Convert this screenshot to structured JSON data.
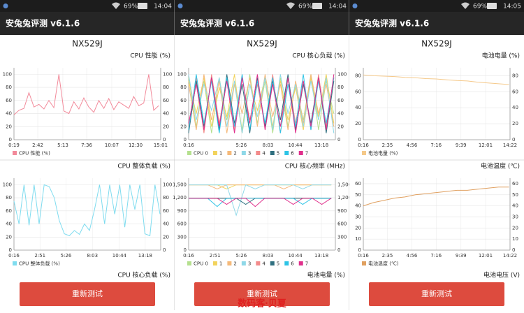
{
  "panels": [
    {
      "status": {
        "battery": "69%",
        "time": "14:04"
      },
      "app_title": "安兔兔评测 v6.1.6",
      "device": "NX529J",
      "charts": [
        {
          "type": "line",
          "title": "CPU 性能 (%)",
          "x": [
            19,
            49,
            79,
            109,
            139,
            169,
            199,
            229,
            259,
            289,
            319,
            349,
            379,
            409,
            439,
            469,
            499,
            529,
            559,
            589,
            619,
            649,
            679,
            709,
            739,
            769,
            799,
            829,
            859,
            889
          ],
          "series": [
            {
              "name": "CPU 性能 (%)",
              "color": "#f28a9a",
              "values": [
                38,
                45,
                48,
                72,
                50,
                54,
                47,
                60,
                49,
                100,
                44,
                40,
                58,
                47,
                64,
                50,
                42,
                60,
                48,
                63,
                46,
                58,
                53,
                48,
                66,
                52,
                56,
                100,
                45,
                52
              ]
            }
          ],
          "xlim": [
            19,
            901
          ],
          "xticks": [
            {
              "value": 19,
              "label": "0:19"
            },
            {
              "value": 162,
              "label": "2:42"
            },
            {
              "value": 313,
              "label": "5:13"
            },
            {
              "value": 456,
              "label": "7:36"
            },
            {
              "value": 607,
              "label": "10:07"
            },
            {
              "value": 750,
              "label": "12:30"
            },
            {
              "value": 901,
              "label": "15:01"
            }
          ],
          "ylim": [
            0,
            110
          ],
          "yticks": [
            0,
            20,
            40,
            60,
            80,
            100
          ]
        },
        {
          "type": "line",
          "title": "CPU 整体负载 (%)",
          "x": [
            16,
            46,
            76,
            106,
            136,
            166,
            196,
            226,
            256,
            286,
            316,
            346,
            376,
            406,
            436,
            466,
            496,
            526,
            556,
            586,
            616,
            646,
            676,
            706,
            736,
            766,
            796,
            826,
            856,
            886
          ],
          "series": [
            {
              "name": "CPU 整体负载 (%)",
              "color": "#7fdcef",
              "values": [
                75,
                40,
                100,
                38,
                100,
                40,
                100,
                97,
                80,
                45,
                25,
                22,
                30,
                24,
                40,
                30,
                62,
                100,
                40,
                100,
                55,
                100,
                35,
                100,
                62,
                100,
                25,
                22,
                100,
                55
              ]
            }
          ],
          "xlim": [
            16,
            890
          ],
          "xticks": [
            {
              "value": 16,
              "label": "0:16"
            },
            {
              "value": 171,
              "label": "2:51"
            },
            {
              "value": 326,
              "label": "5:26"
            },
            {
              "value": 483,
              "label": "8:03"
            },
            {
              "value": 644,
              "label": "10:44"
            },
            {
              "value": 798,
              "label": "13:18"
            }
          ],
          "ylim": [
            0,
            110
          ],
          "yticks": [
            0,
            20,
            40,
            60,
            80,
            100
          ]
        }
      ],
      "next_title": "CPU 核心负载 (%)",
      "button": "重新测试"
    },
    {
      "status": {
        "battery": "69%",
        "time": "14:04"
      },
      "app_title": "安兔兔评测 v6.1.6",
      "device": "NX529J",
      "charts": [
        {
          "type": "line",
          "title": "CPU 核心负载 (%)",
          "x": [
            16,
            61,
            106,
            151,
            196,
            241,
            286,
            331,
            376,
            421,
            466,
            511,
            556,
            601,
            646,
            691,
            736,
            781,
            826,
            871
          ],
          "series": [
            {
              "name": "CPU 0",
              "color": "#b5e08f",
              "values": [
                95,
                20,
                90,
                10,
                95,
                30,
                85,
                15,
                100,
                25,
                90,
                10,
                95,
                20,
                85,
                30,
                100,
                15,
                90,
                40
              ]
            },
            {
              "name": "1",
              "color": "#f2d35c",
              "values": [
                90,
                40,
                95,
                20,
                80,
                35,
                100,
                10,
                85,
                45,
                95,
                20,
                90,
                30,
                80,
                15,
                95,
                35,
                100,
                25
              ]
            },
            {
              "name": "2",
              "color": "#f5b97a",
              "values": [
                85,
                15,
                100,
                30,
                90,
                10,
                85,
                40,
                95,
                20,
                100,
                35,
                85,
                15,
                90,
                25,
                100,
                40,
                85,
                20
              ]
            },
            {
              "name": "3",
              "color": "#8fd8e8",
              "values": [
                100,
                30,
                85,
                45,
                95,
                20,
                90,
                10,
                85,
                35,
                95,
                15,
                100,
                40,
                85,
                20,
                90,
                30,
                95,
                10
              ]
            },
            {
              "name": "4",
              "color": "#f38b8b",
              "values": [
                20,
                95,
                10,
                100,
                25,
                90,
                15,
                95,
                30,
                85,
                20,
                100,
                10,
                95,
                25,
                90,
                15,
                100,
                20,
                95
              ]
            },
            {
              "name": "5",
              "color": "#2f6f7f",
              "values": [
                10,
                90,
                20,
                95,
                15,
                100,
                25,
                85,
                10,
                95,
                20,
                90,
                30,
                100,
                15,
                85,
                25,
                95,
                10,
                90
              ]
            },
            {
              "name": "6",
              "color": "#2ec4e6",
              "values": [
                15,
                100,
                25,
                90,
                10,
                95,
                20,
                100,
                15,
                90,
                25,
                95,
                10,
                85,
                20,
                100,
                15,
                90,
                25,
                95
              ]
            },
            {
              "name": "7",
              "color": "#e0308c",
              "values": [
                25,
                85,
                15,
                95,
                20,
                90,
                10,
                95,
                25,
                100,
                15,
                85,
                20,
                95,
                10,
                90,
                20,
                95,
                15,
                100
              ]
            }
          ],
          "xlim": [
            16,
            880
          ],
          "xticks": [
            {
              "value": 16,
              "label": "0:16"
            },
            {
              "value": 326,
              "label": "5:26"
            },
            {
              "value": 483,
              "label": "8:03"
            },
            {
              "value": 644,
              "label": "10:44"
            },
            {
              "value": 798,
              "label": "13:18"
            }
          ],
          "ylim": [
            0,
            110
          ],
          "yticks": [
            0,
            20,
            40,
            60,
            80,
            100
          ]
        },
        {
          "type": "line",
          "title": "CPU 核心频率 (MHz)",
          "x": [
            16,
            72,
            128,
            184,
            240,
            296,
            352,
            408,
            464,
            520,
            576,
            632,
            688,
            744,
            800,
            856
          ],
          "series": [
            {
              "name": "CPU 0",
              "color": "#b5e08f",
              "values": [
                1497,
                1497,
                1497,
                1497,
                1497,
                1497,
                1497,
                1497,
                1497,
                1497,
                1497,
                1497,
                1497,
                1497,
                1497,
                1497
              ]
            },
            {
              "name": "1",
              "color": "#f2d35c",
              "values": [
                1497,
                1497,
                1497,
                1497,
                1404,
                1497,
                1497,
                1497,
                1497,
                1497,
                1497,
                1497,
                1497,
                1497,
                1497,
                1497
              ]
            },
            {
              "name": "2",
              "color": "#f5b97a",
              "values": [
                1497,
                1497,
                1497,
                1404,
                1497,
                1497,
                1497,
                1497,
                1497,
                1497,
                1404,
                1497,
                1497,
                1497,
                1497,
                1497
              ]
            },
            {
              "name": "3",
              "color": "#8fd8e8",
              "values": [
                1497,
                1497,
                1497,
                1497,
                1497,
                800,
                1497,
                1404,
                1497,
                1497,
                1497,
                1497,
                1404,
                1497,
                1497,
                1497
              ]
            },
            {
              "name": "4",
              "color": "#f38b8b",
              "values": [
                1190,
                1190,
                1190,
                1190,
                1190,
                1190,
                1190,
                1190,
                1190,
                1190,
                1190,
                1190,
                1190,
                1190,
                1190,
                1190
              ]
            },
            {
              "name": "5",
              "color": "#2f6f7f",
              "values": [
                1190,
                1190,
                1190,
                1190,
                1190,
                1190,
                1050,
                1190,
                1190,
                1190,
                1190,
                1190,
                1190,
                1190,
                1190,
                1190
              ]
            },
            {
              "name": "6",
              "color": "#2ec4e6",
              "values": [
                1190,
                1190,
                1190,
                1000,
                1190,
                1190,
                1190,
                1190,
                1190,
                1190,
                1190,
                1190,
                1050,
                1190,
                1190,
                1190
              ]
            },
            {
              "name": "7",
              "color": "#e0308c",
              "values": [
                1190,
                1190,
                1190,
                1190,
                1050,
                1190,
                1190,
                1000,
                1190,
                1190,
                1190,
                1050,
                1190,
                1190,
                1050,
                1190
              ]
            }
          ],
          "xlim": [
            16,
            880
          ],
          "xticks": [
            {
              "value": 16,
              "label": "0:16"
            },
            {
              "value": 171,
              "label": "2:51"
            },
            {
              "value": 326,
              "label": "5:26"
            },
            {
              "value": 483,
              "label": "8:03"
            },
            {
              "value": 644,
              "label": "10:44"
            },
            {
              "value": 798,
              "label": "13:18"
            }
          ],
          "ylim": [
            0,
            1650
          ],
          "yticks": [
            0,
            300,
            600,
            900,
            {
              "value": 1200,
              "label": "1,200"
            },
            {
              "value": 1500,
              "label": "1,500"
            }
          ]
        }
      ],
      "next_title": "电池电量 (%)",
      "button": "重新测试"
    },
    {
      "status": {
        "battery": "69%",
        "time": "14:05"
      },
      "app_title": "安兔兔评测 v6.1.6",
      "device": "NX529J",
      "charts": [
        {
          "type": "line",
          "title": "电池电量 (%)",
          "x": [
            16,
            76,
            136,
            196,
            256,
            316,
            376,
            436,
            496,
            556,
            616,
            676,
            736,
            796,
            856
          ],
          "series": [
            {
              "name": "电池电量 (%)",
              "color": "#f5c98a",
              "values": [
                81,
                80,
                79.5,
                79,
                78,
                77.5,
                76.5,
                76,
                75,
                74,
                73.5,
                72,
                71,
                70,
                69
              ]
            }
          ],
          "xlim": [
            16,
            862
          ],
          "xticks": [
            {
              "value": 16,
              "label": "0:16"
            },
            {
              "value": 155,
              "label": "2:35"
            },
            {
              "value": 296,
              "label": "4:56"
            },
            {
              "value": 436,
              "label": "7:16"
            },
            {
              "value": 579,
              "label": "9:39"
            },
            {
              "value": 721,
              "label": "12:01"
            },
            {
              "value": 862,
              "label": "14:22"
            }
          ],
          "ylim": [
            0,
            90
          ],
          "yticks": [
            0,
            20,
            40,
            60,
            80
          ]
        },
        {
          "type": "line",
          "title": "电池温度 (℃)",
          "x": [
            16,
            76,
            136,
            196,
            256,
            316,
            376,
            436,
            496,
            556,
            616,
            676,
            736,
            796,
            856
          ],
          "series": [
            {
              "name": "电池温度 (℃)",
              "color": "#e0a060",
              "values": [
                40,
                43,
                45,
                47,
                48,
                50,
                51,
                52,
                53,
                54,
                54,
                55,
                56,
                57,
                57
              ]
            }
          ],
          "xlim": [
            16,
            862
          ],
          "xticks": [
            {
              "value": 16,
              "label": "0:16"
            },
            {
              "value": 155,
              "label": "2:35"
            },
            {
              "value": 296,
              "label": "4:56"
            },
            {
              "value": 436,
              "label": "7:16"
            },
            {
              "value": 579,
              "label": "9:39"
            },
            {
              "value": 721,
              "label": "12:01"
            },
            {
              "value": 862,
              "label": "14:22"
            }
          ],
          "ylim": [
            0,
            65
          ],
          "yticks": [
            0,
            10,
            20,
            30,
            40,
            50,
            60
          ]
        }
      ],
      "next_title": "电池电压 (V)",
      "button": "重新测试"
    }
  ],
  "watermark": "数码客·贝夏"
}
